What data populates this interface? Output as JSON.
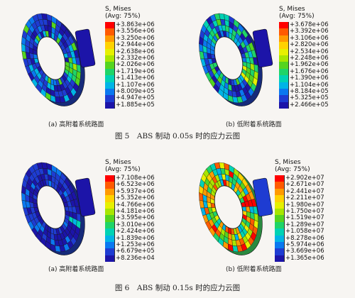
{
  "figures": [
    {
      "caption": "图 5　ABS 制动 0.05s 时的应力云图",
      "panels": [
        {
          "label": "(a) 高附着系统路面",
          "legend_title": "S, Mises",
          "legend_subtitle": "(Avg: 75%)",
          "values": [
            "+3.863e+06",
            "+3.556e+06",
            "+3.250e+06",
            "+2.944e+06",
            "+2.638e+06",
            "+2.332e+06",
            "+2.026e+06",
            "+1.719e+06",
            "+1.413e+06",
            "+1.107e+06",
            "+8.009e+05",
            "+4.947e+05",
            "+1.885e+05"
          ]
        },
        {
          "label": "(b) 低附着系统路面",
          "legend_title": "S, Mises",
          "legend_subtitle": "(Avg: 75%)",
          "values": [
            "+3.678e+06",
            "+3.392e+06",
            "+3.106e+06",
            "+2.820e+06",
            "+2.534e+06",
            "+2.248e+06",
            "+1.962e+06",
            "+1.676e+06",
            "+1.390e+06",
            "+1.104e+06",
            "+8.184e+05",
            "+5.325e+05",
            "+2.466e+05"
          ]
        }
      ]
    },
    {
      "caption": "图 6　ABS 制动 0.15s 时的应力云图",
      "panels": [
        {
          "label": "(a) 高附着系统路面",
          "legend_title": "S, Mises",
          "legend_subtitle": "(Avg: 75%)",
          "values": [
            "+7.108e+06",
            "+6.523e+06",
            "+5.937e+06",
            "+5.352e+06",
            "+4.766e+06",
            "+4.181e+06",
            "+3.595e+06",
            "+3.010e+06",
            "+2.424e+06",
            "+1.839e+06",
            "+1.253e+06",
            "+6.679e+05",
            "+8.236e+04"
          ]
        },
        {
          "label": "(b) 低附着系统路面",
          "legend_title": "S, Mises",
          "legend_subtitle": "(Avg: 75%)",
          "values": [
            "+2.902e+07",
            "+2.671e+07",
            "+2.441e+07",
            "+2.211e+07",
            "+1.980e+07",
            "+1.750e+07",
            "+1.519e+07",
            "+1.289e+07",
            "+1.058e+07",
            "+8.278e+06",
            "+5.974e+06",
            "+3.669e+06",
            "+1.365e+06"
          ]
        }
      ]
    }
  ],
  "colormap": [
    "#ff0000",
    "#ff5a00",
    "#ff9a00",
    "#ffd200",
    "#e6f000",
    "#a8e600",
    "#55d41f",
    "#1fd468",
    "#00d2b4",
    "#00b4e6",
    "#0a78f0",
    "#1e3cd2",
    "#1c14a8"
  ]
}
